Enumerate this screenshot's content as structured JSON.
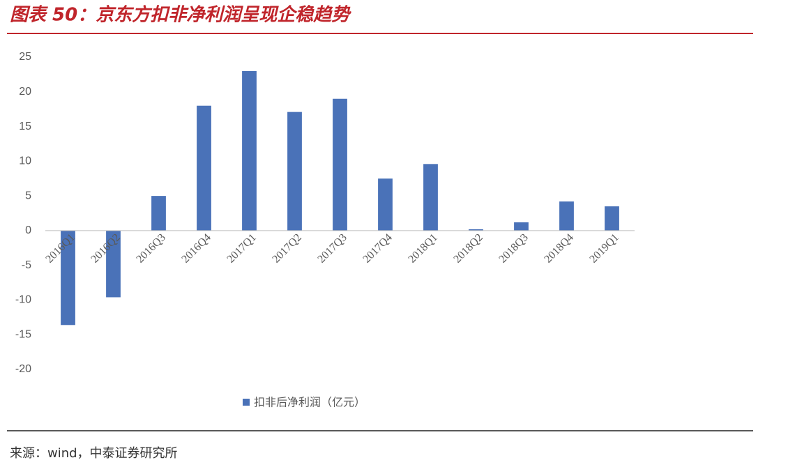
{
  "title": "图表 50：京东方扣非净利润呈现企稳趋势",
  "source": "来源：wind，中泰证券研究所",
  "chart_data": {
    "type": "bar",
    "categories": [
      "2016Q1",
      "2016Q2",
      "2016Q3",
      "2016Q4",
      "2017Q1",
      "2017Q2",
      "2017Q3",
      "2017Q4",
      "2018Q1",
      "2018Q2",
      "2018Q3",
      "2018Q4",
      "2019Q1"
    ],
    "series": [
      {
        "name": "扣非后净利润（亿元）",
        "color": "#4a72b8",
        "values": [
          -13.6,
          -9.6,
          5.0,
          18.0,
          23.0,
          17.1,
          19.0,
          7.5,
          9.6,
          0.2,
          1.2,
          4.2,
          3.5
        ]
      }
    ],
    "ylim": [
      -20,
      25
    ],
    "yticks": [
      -20,
      -15,
      -10,
      -5,
      0,
      5,
      10,
      15,
      20,
      25
    ],
    "grid": false,
    "legend": "bottom"
  }
}
